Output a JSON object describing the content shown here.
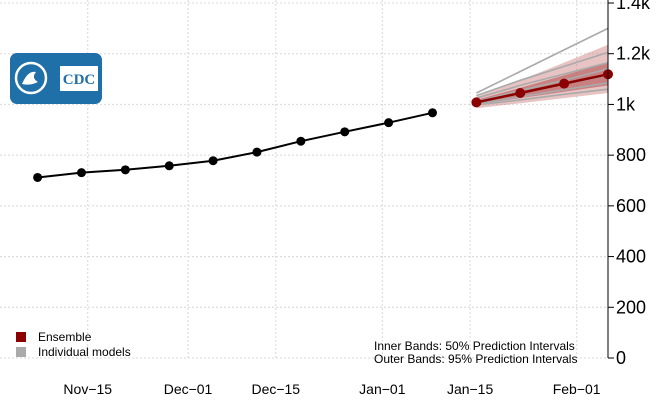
{
  "chart_data": {
    "type": "line",
    "y_axis": {
      "side": "right",
      "ticks": [
        0,
        200,
        400,
        600,
        800,
        1000,
        1200,
        1400
      ],
      "tick_labels": [
        "0",
        "200",
        "400",
        "600",
        "800",
        "1k",
        "1.2k",
        "1.4k"
      ],
      "ylim": [
        0,
        1400
      ]
    },
    "x_axis": {
      "tick_dates": [
        "2020-11-15",
        "2020-12-01",
        "2020-12-15",
        "2021-01-01",
        "2021-01-15",
        "2021-02-01"
      ],
      "tick_labels": [
        "Nov−15",
        "Dec−01",
        "Dec−15",
        "Jan−01",
        "Jan−15",
        "Feb−01"
      ],
      "xlim": [
        "2020-11-01",
        "2021-02-06"
      ]
    },
    "observed": {
      "x": [
        "2020-11-07",
        "2020-11-14",
        "2020-11-21",
        "2020-11-28",
        "2020-12-05",
        "2020-12-12",
        "2020-12-19",
        "2020-12-26",
        "2021-01-02",
        "2021-01-09"
      ],
      "y": [
        712,
        731,
        742,
        758,
        778,
        812,
        855,
        892,
        928,
        967
      ]
    },
    "ensemble": {
      "name": "Ensemble",
      "color": "#8b0000",
      "x": [
        "2021-01-16",
        "2021-01-23",
        "2021-01-30",
        "2021-02-06"
      ],
      "median": [
        1008,
        1045,
        1082,
        1119
      ],
      "pi50_lower": [
        1000,
        1025,
        1050,
        1075
      ],
      "pi50_upper": [
        1018,
        1065,
        1115,
        1165
      ],
      "pi95_lower": [
        985,
        1005,
        1025,
        1045
      ],
      "pi95_upper": [
        1030,
        1095,
        1165,
        1235
      ]
    },
    "individual_models": {
      "name": "Individual models",
      "color": "#aaaaaa",
      "x": [
        "2021-01-16",
        "2021-01-23",
        "2021-01-30",
        "2021-02-06"
      ],
      "series": [
        [
          1045,
          1130,
          1215,
          1300
        ],
        [
          1035,
          1095,
          1150,
          1205
        ],
        [
          1025,
          1075,
          1120,
          1165
        ],
        [
          1012,
          1055,
          1095,
          1140
        ],
        [
          1008,
          1045,
          1080,
          1115
        ],
        [
          1003,
          1030,
          1058,
          1085
        ],
        [
          998,
          1018,
          1040,
          1060
        ]
      ]
    },
    "legend": {
      "position": "bottom-left",
      "items": [
        {
          "label": "Ensemble",
          "color": "#8b0000"
        },
        {
          "label": "Individual models",
          "color": "#aaaaaa"
        }
      ]
    },
    "notes": [
      "Inner Bands: 50% Prediction Intervals",
      "Outer Bands: 95% Prediction Intervals"
    ],
    "logo_text": "CDC",
    "grid": true
  }
}
